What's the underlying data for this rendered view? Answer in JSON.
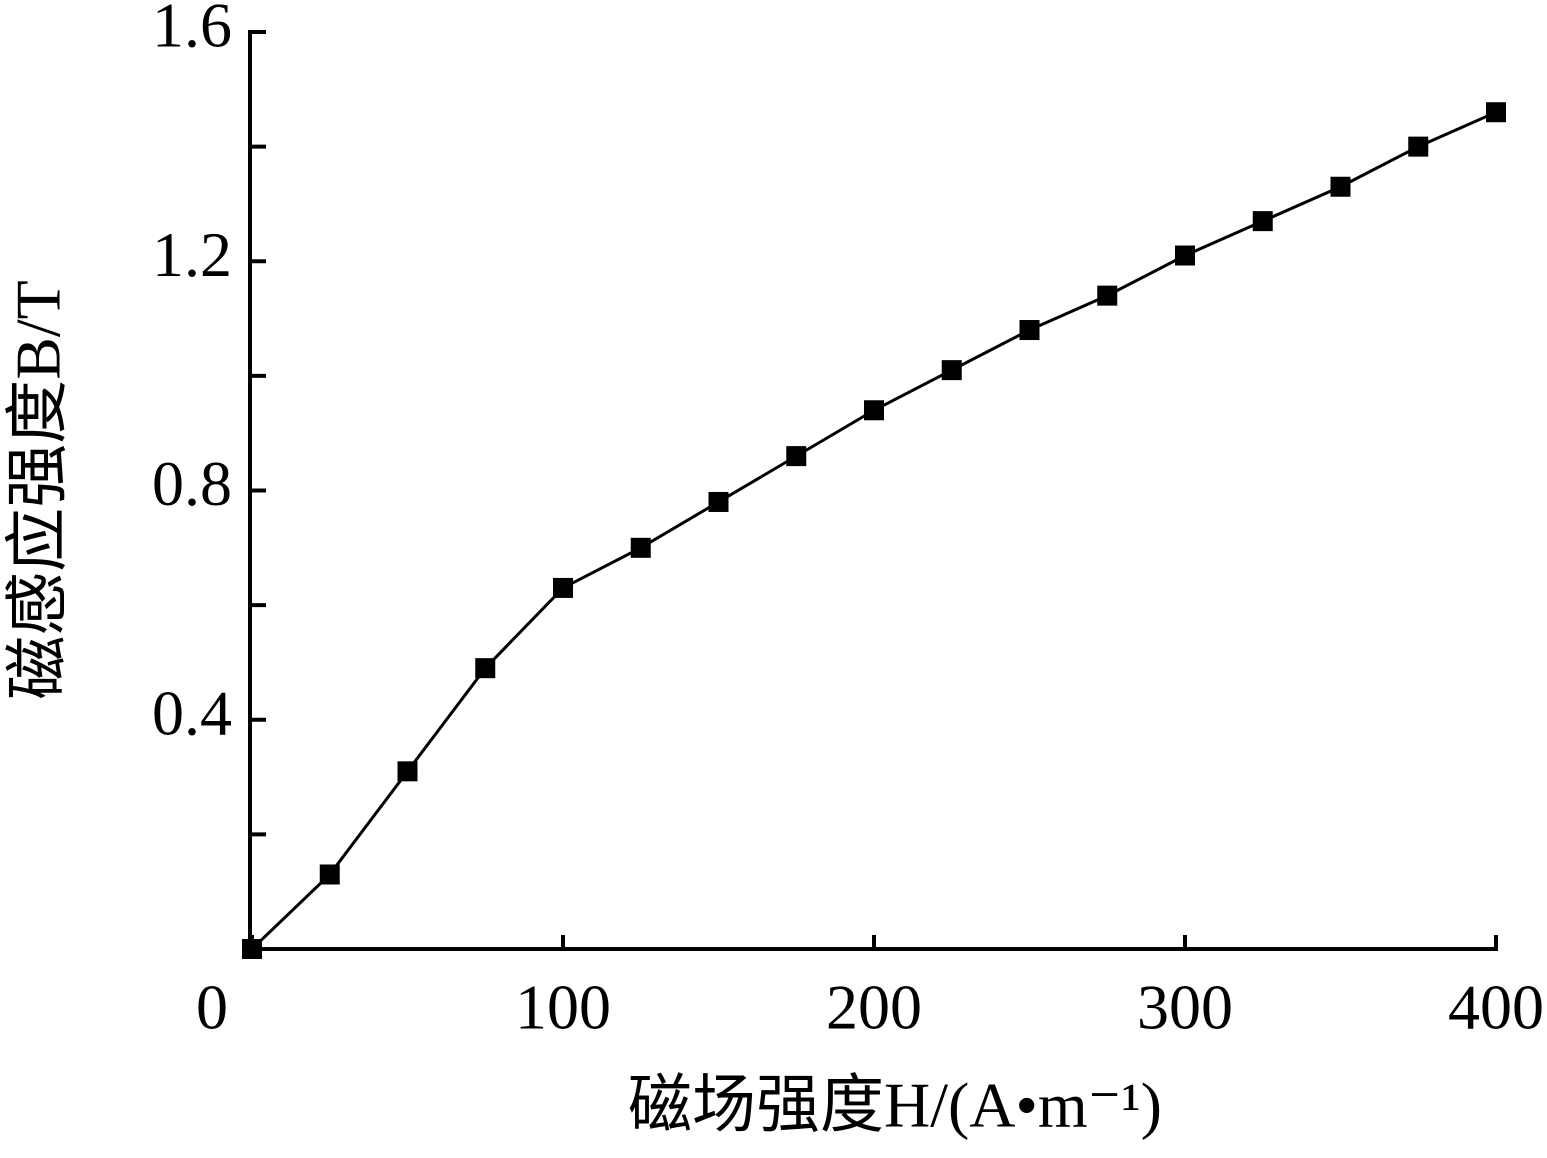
{
  "chart_data": {
    "type": "line",
    "x_label": "磁场强度H/(A•m⁻¹)",
    "y_label": "磁感应强度B/T",
    "x": [
      0,
      25,
      50,
      75,
      100,
      125,
      150,
      175,
      200,
      225,
      250,
      275,
      300,
      325,
      350,
      375,
      400
    ],
    "series": [
      {
        "color": "#000000",
        "values": [
          0,
          0.13,
          0.31,
          0.49,
          0.63,
          0.7,
          0.78,
          0.86,
          0.94,
          1.01,
          1.08,
          1.14,
          1.21,
          1.27,
          1.33,
          1.4,
          1.46
        ]
      }
    ],
    "xlim": [
      0,
      400
    ],
    "xticks": [
      0,
      100,
      200,
      300,
      400
    ],
    "ylim": [
      0,
      1.6
    ],
    "yticks": [
      0.4,
      0.8,
      1.2,
      1.6
    ],
    "yminorticks": [
      0.2,
      0.6,
      1.0,
      1.4
    ],
    "grid": false
  }
}
